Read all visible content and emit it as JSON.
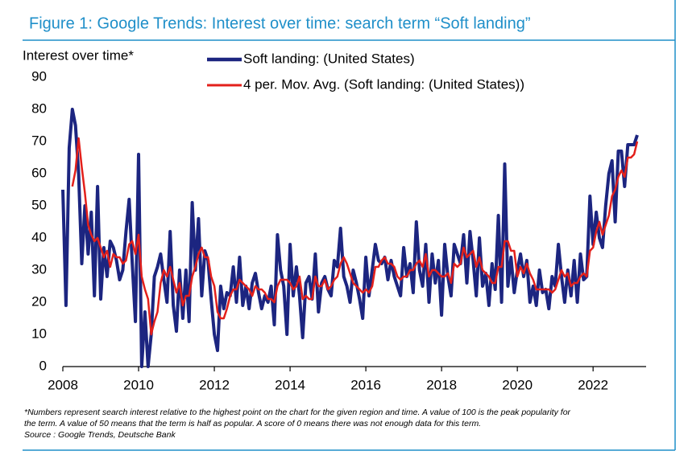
{
  "chart_data": {
    "type": "line",
    "title": "Figure 1: Google Trends: Interest over time: search term “Soft landing”",
    "y_label": "Interest over time*",
    "footnote": [
      "*Numbers represent search interest relative to the highest point on the chart for the given region and time. A value of 100 is the peak popularity for",
      "the term. A value of 50 means that the term is half as popular. A score of 0 means there was not enough data for this term."
    ],
    "source": "Source : Google Trends, Deutsche Bank",
    "xlim": [
      2008,
      2023.4
    ],
    "xticks": [
      2008,
      2010,
      2012,
      2014,
      2016,
      2018,
      2020,
      2022
    ],
    "ylim": [
      0,
      90
    ],
    "yticks": [
      0,
      10,
      20,
      30,
      40,
      50,
      60,
      70,
      80,
      90
    ],
    "x": [
      2008,
      2008.083,
      2008.167,
      2008.25,
      2008.333,
      2008.417,
      2008.5,
      2008.583,
      2008.667,
      2008.75,
      2008.833,
      2008.917,
      2009,
      2009.083,
      2009.167,
      2009.25,
      2009.333,
      2009.417,
      2009.5,
      2009.583,
      2009.667,
      2009.75,
      2009.833,
      2009.917,
      2010,
      2010.083,
      2010.167,
      2010.25,
      2010.333,
      2010.417,
      2010.5,
      2010.583,
      2010.667,
      2010.75,
      2010.833,
      2010.917,
      2011,
      2011.083,
      2011.167,
      2011.25,
      2011.333,
      2011.417,
      2011.5,
      2011.583,
      2011.667,
      2011.75,
      2011.833,
      2011.917,
      2012,
      2012.083,
      2012.167,
      2012.25,
      2012.333,
      2012.417,
      2012.5,
      2012.583,
      2012.667,
      2012.75,
      2012.833,
      2012.917,
      2013,
      2013.083,
      2013.167,
      2013.25,
      2013.333,
      2013.417,
      2013.5,
      2013.583,
      2013.667,
      2013.75,
      2013.833,
      2013.917,
      2014,
      2014.083,
      2014.167,
      2014.25,
      2014.333,
      2014.417,
      2014.5,
      2014.583,
      2014.667,
      2014.75,
      2014.833,
      2014.917,
      2015,
      2015.083,
      2015.167,
      2015.25,
      2015.333,
      2015.417,
      2015.5,
      2015.583,
      2015.667,
      2015.75,
      2015.833,
      2015.917,
      2016,
      2016.083,
      2016.167,
      2016.25,
      2016.333,
      2016.417,
      2016.5,
      2016.583,
      2016.667,
      2016.75,
      2016.833,
      2016.917,
      2017,
      2017.083,
      2017.167,
      2017.25,
      2017.333,
      2017.417,
      2017.5,
      2017.583,
      2017.667,
      2017.75,
      2017.833,
      2017.917,
      2018,
      2018.083,
      2018.167,
      2018.25,
      2018.333,
      2018.417,
      2018.5,
      2018.583,
      2018.667,
      2018.75,
      2018.833,
      2018.917,
      2019,
      2019.083,
      2019.167,
      2019.25,
      2019.333,
      2019.417,
      2019.5,
      2019.583,
      2019.667,
      2019.75,
      2019.833,
      2019.917,
      2020,
      2020.083,
      2020.167,
      2020.25,
      2020.333,
      2020.417,
      2020.5,
      2020.583,
      2020.667,
      2020.75,
      2020.833,
      2020.917,
      2021,
      2021.083,
      2021.167,
      2021.25,
      2021.333,
      2021.417,
      2021.5,
      2021.583,
      2021.667,
      2021.75,
      2021.833,
      2021.917,
      2022,
      2022.083,
      2022.167,
      2022.25,
      2022.333,
      2022.417,
      2022.5,
      2022.583,
      2022.667,
      2022.75,
      2022.833,
      2022.917,
      2023,
      2023.083,
      2023.167
    ],
    "series": [
      {
        "name": "Soft landing: (United States)",
        "color": "#1c2580",
        "width": 4,
        "values": [
          55,
          19,
          68,
          80,
          75,
          60,
          32,
          50,
          35,
          48,
          22,
          56,
          21,
          37,
          28,
          39,
          37,
          33,
          27,
          30,
          42,
          52,
          32,
          14,
          66,
          0,
          17,
          0,
          10,
          28,
          31,
          35,
          27,
          20,
          42,
          19,
          11,
          30,
          15,
          30,
          14,
          51,
          30,
          46,
          22,
          36,
          33,
          21,
          10,
          5,
          25,
          18,
          23,
          22,
          31,
          20,
          34,
          19,
          25,
          18,
          26,
          29,
          23,
          18,
          22,
          20,
          25,
          13,
          41,
          30,
          25,
          10,
          38,
          22,
          31,
          22,
          9,
          26,
          28,
          21,
          35,
          17,
          26,
          28,
          24,
          22,
          33,
          31,
          43,
          28,
          25,
          20,
          30,
          26,
          21,
          15,
          34,
          22,
          30,
          38,
          33,
          32,
          34,
          27,
          33,
          28,
          25,
          22,
          37,
          28,
          32,
          23,
          45,
          30,
          25,
          38,
          20,
          35,
          26,
          33,
          16,
          38,
          28,
          22,
          38,
          35,
          32,
          41,
          26,
          42,
          33,
          22,
          40,
          25,
          29,
          19,
          32,
          24,
          47,
          20,
          63,
          25,
          34,
          23,
          30,
          35,
          28,
          33,
          20,
          25,
          19,
          30,
          23,
          24,
          18,
          28,
          25,
          38,
          28,
          20,
          30,
          22,
          33,
          20,
          35,
          27,
          28,
          53,
          38,
          48,
          40,
          37,
          50,
          60,
          64,
          45,
          67,
          67,
          56,
          69,
          69,
          69,
          72
        ]
      },
      {
        "name": "4 per. Mov. Avg. (Soft landing: (United States))",
        "color": "#e3201b",
        "width": 2.5,
        "values": [
          null,
          null,
          null,
          56,
          61,
          71,
          62,
          54,
          44,
          41,
          39,
          40,
          37,
          34,
          36,
          31,
          35,
          34,
          34,
          32,
          33,
          38,
          39,
          35,
          41,
          28,
          24,
          21,
          10,
          14,
          17,
          26,
          30,
          28,
          31,
          27,
          23,
          26,
          19,
          22,
          22,
          28,
          31,
          35,
          37,
          34,
          34,
          28,
          25,
          17,
          15,
          15,
          18,
          22,
          24,
          24,
          27,
          26,
          25,
          24,
          22,
          25,
          24,
          24,
          23,
          21,
          21,
          20,
          25,
          27,
          27,
          27,
          26,
          24,
          25,
          28,
          21,
          22,
          21,
          21,
          28,
          25,
          25,
          27,
          24,
          25,
          27,
          28,
          32,
          34,
          32,
          29,
          26,
          25,
          24,
          23,
          24,
          23,
          25,
          31,
          31,
          33,
          34,
          32,
          32,
          31,
          28,
          27,
          28,
          28,
          30,
          30,
          32,
          33,
          31,
          35,
          28,
          30,
          30,
          29,
          28,
          28,
          29,
          26,
          32,
          31,
          32,
          37,
          34,
          35,
          36,
          31,
          34,
          30,
          29,
          28,
          26,
          26,
          31,
          31,
          39,
          39,
          36,
          36,
          28,
          31,
          29,
          32,
          29,
          27,
          24,
          24,
          24,
          24,
          24,
          23,
          24,
          27,
          30,
          28,
          29,
          25,
          26,
          26,
          28,
          29,
          28,
          36,
          37,
          42,
          45,
          41,
          44,
          47,
          53,
          55,
          59,
          61,
          59,
          65,
          65,
          66,
          70
        ]
      }
    ]
  }
}
